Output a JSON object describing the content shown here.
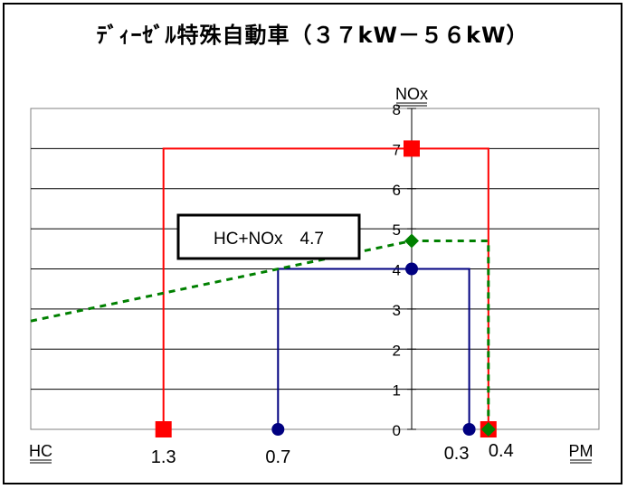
{
  "chart_data": {
    "type": "line",
    "title": "ﾃﾞｨｰｾﾞﾙ特殊自動車（３７kW－５６kW）",
    "y_axis_label": "NOx",
    "left_axis_label": "HC",
    "right_axis_label": "PM",
    "ylim": [
      0,
      8
    ],
    "y_ticks": [
      "0",
      "1",
      "2",
      "3",
      "4",
      "5",
      "6",
      "7",
      "8"
    ],
    "left_axis_ticks": [
      {
        "label": "1.3",
        "value": 1.3
      },
      {
        "label": "0.7",
        "value": 0.7
      }
    ],
    "right_axis_ticks": [
      {
        "label": "0.3",
        "value": 0.3
      },
      {
        "label": "0.4",
        "value": 0.4
      }
    ],
    "grid": true,
    "annotation": "HC+NOx　4.7",
    "series": [
      {
        "color": "#ff0000",
        "HC": 1.3,
        "NOx": 7,
        "PM": 0.4,
        "marker": "square"
      },
      {
        "color": "#000080",
        "HC": 0.7,
        "NOx": 4,
        "PM": 0.3,
        "marker": "circle"
      },
      {
        "color": "#008000",
        "HC_plus_NOx": 4.7,
        "PM": 0.4,
        "marker": "diamond",
        "line_style": "dashed"
      }
    ]
  }
}
